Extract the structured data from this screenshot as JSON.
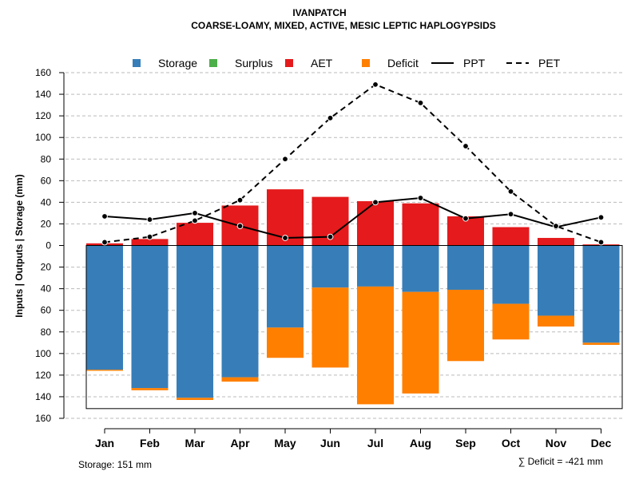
{
  "chart_data": {
    "type": "bar",
    "title": "IVANPATCH",
    "subtitle": "COARSE-LOAMY, MIXED, ACTIVE, MESIC LEPTIC HAPLOGYPSIDS",
    "ylabel": "Inputs | Outputs | Storage    (mm)",
    "ylim": [
      -160,
      160
    ],
    "yticks": [
      160,
      140,
      120,
      100,
      80,
      60,
      40,
      20,
      0,
      -20,
      -40,
      -60,
      -80,
      -100,
      -120,
      -140,
      -160
    ],
    "ytick_labels": [
      "160",
      "140",
      "120",
      "100",
      "80",
      "60",
      "40",
      "20",
      "0",
      "20",
      "40",
      "60",
      "80",
      "100",
      "120",
      "140",
      "160"
    ],
    "grid": true,
    "legend_position": "top",
    "categories": [
      "Jan",
      "Feb",
      "Mar",
      "Apr",
      "May",
      "Jun",
      "Jul",
      "Aug",
      "Sep",
      "Oct",
      "Nov",
      "Dec"
    ],
    "series": [
      {
        "name": "Storage",
        "kind": "bar",
        "color": "#377EB8",
        "values": [
          115,
          132,
          141,
          122,
          76,
          39,
          38,
          43,
          41,
          54,
          65,
          90
        ]
      },
      {
        "name": "Surplus",
        "kind": "bar",
        "color": "#4DAF4A",
        "values": [
          0,
          0,
          0,
          0,
          0,
          0,
          0,
          0,
          0,
          0,
          0,
          0
        ]
      },
      {
        "name": "AET",
        "kind": "bar",
        "color": "#E41A1C",
        "values": [
          2,
          6,
          21,
          37,
          52,
          45,
          41,
          39,
          27,
          17,
          7,
          1
        ]
      },
      {
        "name": "Deficit",
        "kind": "bar",
        "color": "#FF7F00",
        "values": [
          1,
          2,
          2,
          4,
          28,
          74,
          109,
          94,
          66,
          33,
          10,
          2
        ]
      },
      {
        "name": "PPT",
        "kind": "line",
        "color": "#000000",
        "dash": "solid",
        "values": [
          27,
          24,
          30,
          18,
          7,
          8,
          40,
          44,
          25,
          29,
          17,
          26
        ]
      },
      {
        "name": "PET",
        "kind": "line",
        "color": "#000000",
        "dash": "dashed",
        "values": [
          3,
          8,
          23,
          42,
          80,
          118,
          149,
          132,
          92,
          50,
          18,
          3
        ]
      }
    ],
    "storage_capacity": 151,
    "footer_left": "Storage: 151 mm",
    "footer_right": "∑ Deficit = -421 mm"
  }
}
